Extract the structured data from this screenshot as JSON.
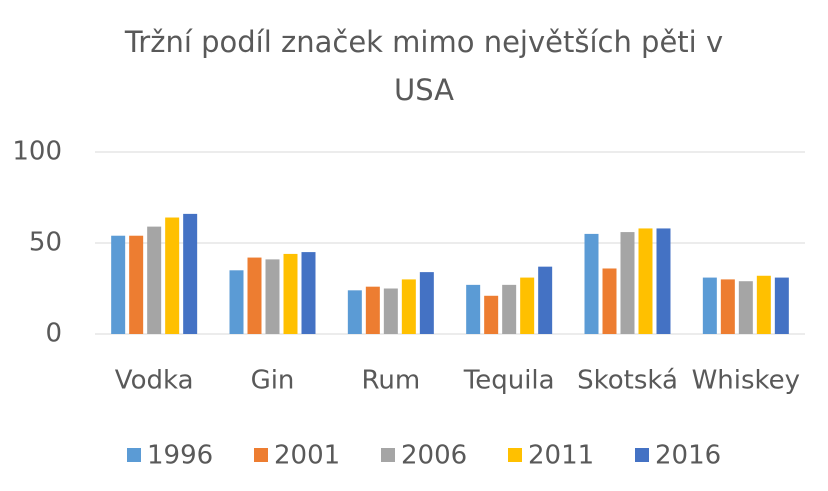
{
  "chart_data": {
    "type": "bar",
    "title": "Tržní podíl značek mimo největších pěti v USA",
    "categories": [
      "Vodka",
      "Gin",
      "Rum",
      "Tequila",
      "Skotská",
      "Whiskey"
    ],
    "series": [
      {
        "name": "1996",
        "color": "#5b9bd5",
        "values": [
          54,
          35,
          24,
          27,
          55,
          31
        ]
      },
      {
        "name": "2001",
        "color": "#ed7d31",
        "values": [
          54,
          42,
          26,
          21,
          36,
          30
        ]
      },
      {
        "name": "2006",
        "color": "#a5a5a5",
        "values": [
          59,
          41,
          25,
          27,
          56,
          29
        ]
      },
      {
        "name": "2011",
        "color": "#ffc000",
        "values": [
          64,
          44,
          30,
          31,
          58,
          32
        ]
      },
      {
        "name": "2016",
        "color": "#4472c4",
        "values": [
          66,
          45,
          34,
          37,
          58,
          31
        ]
      }
    ],
    "ylim": [
      0,
      100
    ],
    "yticks": [
      0,
      50,
      100
    ],
    "grid": true
  }
}
